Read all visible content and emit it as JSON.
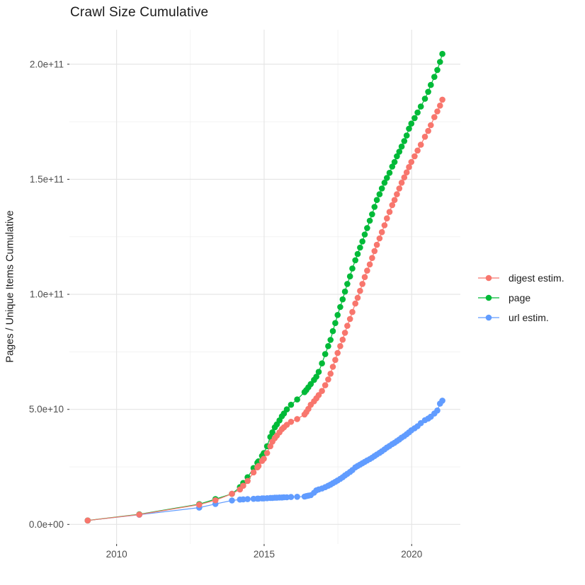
{
  "page": {
    "title": "Crawl Size Cumulative"
  },
  "chart_data": {
    "type": "line",
    "title": "Crawl Size Cumulative",
    "xlabel": "",
    "ylabel": "Pages / Unique Items Cumulative",
    "grid": true,
    "legend_position": "right",
    "axis_text_color": "#4d4d4d",
    "grid_major_color": "#e4e4e4",
    "grid_minor_color": "#efefef",
    "tick_color": "#333333",
    "xlim": [
      2008.4,
      2021.65
    ],
    "ylim_billions": [
      -8.5,
      215
    ],
    "x_ticks": [
      {
        "label": "2010",
        "value": 2010
      },
      {
        "label": "2015",
        "value": 2015
      },
      {
        "label": "2020",
        "value": 2020
      }
    ],
    "x_minor_ticks": [
      2012.5,
      2017.5
    ],
    "y_ticks": [
      {
        "label": "0.0e+00",
        "value_billions": 0
      },
      {
        "label": "5.0e+10",
        "value_billions": 50
      },
      {
        "label": "1.0e+11",
        "value_billions": 100
      },
      {
        "label": "1.5e+11",
        "value_billions": 150
      },
      {
        "label": "2.0e+11",
        "value_billions": 200
      }
    ],
    "y_minor_ticks_billions": [
      25,
      75,
      125,
      175
    ],
    "y_unit_multiplier": 1000000000,
    "x_unit": "year (decimal)",
    "x": [
      2009.02,
      2010.77,
      2012.8,
      2013.35,
      2013.91,
      2014.18,
      2014.29,
      2014.44,
      2014.64,
      2014.77,
      2014.81,
      2014.93,
      2014.99,
      2015.1,
      2015.21,
      2015.28,
      2015.36,
      2015.43,
      2015.52,
      2015.6,
      2015.67,
      2015.77,
      2015.91,
      2016.12,
      2016.37,
      2016.43,
      2016.5,
      2016.58,
      2016.69,
      2016.77,
      2016.85,
      2016.96,
      2017.07,
      2017.17,
      2017.25,
      2017.33,
      2017.41,
      2017.49,
      2017.58,
      2017.66,
      2017.74,
      2017.82,
      2017.91,
      2017.99,
      2018.09,
      2018.17,
      2018.25,
      2018.33,
      2018.41,
      2018.49,
      2018.58,
      2018.66,
      2018.74,
      2018.82,
      2018.91,
      2018.99,
      2019.08,
      2019.16,
      2019.25,
      2019.34,
      2019.42,
      2019.5,
      2019.58,
      2019.66,
      2019.75,
      2019.83,
      2019.91,
      2019.99,
      2020.1,
      2020.2,
      2020.31,
      2020.45,
      2020.56,
      2020.65,
      2020.77,
      2020.87,
      2020.96,
      2021.04
    ],
    "series": [
      {
        "name": "digest estim.",
        "color": "#F8766D",
        "y_billions": [
          1.7,
          4.3,
          8.6,
          10.5,
          13.3,
          15.2,
          16.8,
          18.9,
          22.6,
          24.8,
          25.4,
          27.6,
          28.5,
          31.0,
          34.0,
          36.0,
          37.5,
          38.6,
          40.0,
          41.4,
          42.2,
          43.3,
          44.6,
          45.8,
          47.8,
          48.8,
          50.2,
          52.0,
          53.5,
          54.8,
          56.2,
          58.0,
          60.5,
          63.0,
          65.5,
          68.5,
          71.5,
          74.5,
          77.5,
          80.3,
          83.3,
          86.3,
          89.3,
          92.3,
          96.0,
          98.5,
          101.5,
          104.5,
          107.5,
          110.3,
          113.0,
          115.8,
          118.8,
          121.5,
          124.3,
          127.0,
          130.0,
          133.0,
          135.8,
          138.8,
          141.0,
          143.5,
          146.0,
          148.5,
          150.8,
          153.0,
          155.3,
          157.5,
          160.0,
          162.5,
          165.0,
          168.5,
          171.0,
          173.5,
          177.0,
          179.5,
          182.0,
          184.6
        ]
      },
      {
        "name": "page",
        "color": "#00BA38",
        "y_billions": [
          1.7,
          4.4,
          8.8,
          11.0,
          13.3,
          16.2,
          18.0,
          20.5,
          24.5,
          26.8,
          27.4,
          29.8,
          31.0,
          34.0,
          38.0,
          40.0,
          42.2,
          43.5,
          45.2,
          47.0,
          48.2,
          50.0,
          52.0,
          54.3,
          57.5,
          58.4,
          59.6,
          61.0,
          62.8,
          64.2,
          66.3,
          70.0,
          74.0,
          77.5,
          80.2,
          84.0,
          87.5,
          91.0,
          94.5,
          97.8,
          101.2,
          104.5,
          107.8,
          111.2,
          114.8,
          117.5,
          120.3,
          123.0,
          126.0,
          128.8,
          132.0,
          134.8,
          138.0,
          141.0,
          143.5,
          146.0,
          148.5,
          150.6,
          152.8,
          155.5,
          157.5,
          160.0,
          162.0,
          164.2,
          166.6,
          169.0,
          172.0,
          174.2,
          176.6,
          179.0,
          181.6,
          185.0,
          188.0,
          191.0,
          194.5,
          197.5,
          201.0,
          204.5
        ]
      },
      {
        "name": "url estim.",
        "color": "#619CFF",
        "y_billions": [
          1.7,
          4.2,
          7.3,
          8.9,
          10.4,
          10.8,
          10.9,
          11.0,
          11.1,
          11.2,
          11.2,
          11.3,
          11.3,
          11.4,
          11.5,
          11.5,
          11.6,
          11.6,
          11.7,
          11.7,
          11.8,
          11.8,
          11.9,
          12.0,
          12.1,
          12.3,
          12.5,
          12.7,
          13.8,
          14.8,
          15.2,
          15.6,
          16.2,
          16.8,
          17.3,
          17.9,
          18.5,
          19.1,
          19.8,
          20.5,
          21.3,
          22.0,
          22.8,
          23.6,
          24.8,
          25.4,
          26.0,
          26.6,
          27.2,
          27.8,
          28.4,
          29.0,
          29.7,
          30.4,
          31.1,
          31.8,
          32.6,
          33.4,
          34.1,
          34.9,
          35.5,
          36.2,
          36.9,
          37.7,
          38.4,
          39.2,
          40.0,
          40.9,
          41.8,
          42.7,
          44.0,
          45.3,
          46.0,
          46.8,
          48.2,
          49.5,
          52.5,
          53.8
        ]
      }
    ],
    "draw_order": [
      2,
      1,
      0
    ]
  }
}
